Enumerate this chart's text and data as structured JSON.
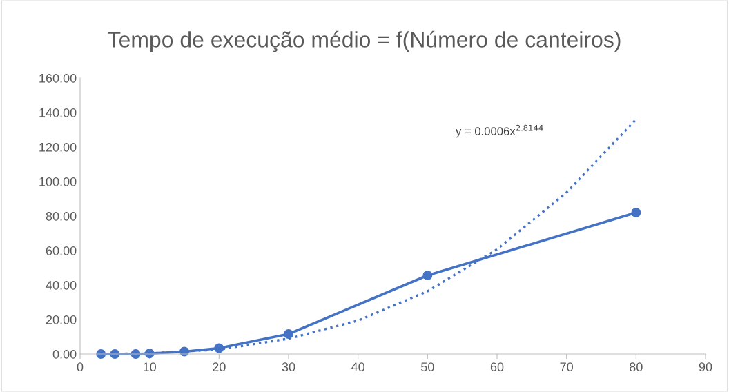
{
  "chart_data": {
    "type": "line",
    "title": "Tempo de execução médio = f(Número de canteiros)",
    "series": [
      {
        "color": "#4472c4",
        "marker": "circle",
        "line_style": "solid",
        "x": [
          3,
          5,
          8,
          10,
          15,
          20,
          30,
          50,
          80
        ],
        "values": [
          0.0,
          0.0,
          0.0,
          0.3,
          1.4,
          3.4,
          11.6,
          45.6,
          82.0
        ]
      },
      {
        "color": "#4472c4",
        "marker": "none",
        "line_style": "dotted",
        "x": [
          3,
          10,
          20,
          30,
          40,
          50,
          60,
          70,
          80
        ],
        "values": [
          0.0,
          0.4,
          2.6,
          8.9,
          19.4,
          36.4,
          60.7,
          93.6,
          136.0
        ]
      }
    ],
    "xlim": [
      0,
      90
    ],
    "xticks": [
      0,
      10,
      20,
      30,
      40,
      50,
      60,
      70,
      80,
      90
    ],
    "ylim": [
      0,
      160
    ],
    "yticks": [
      {
        "value": 0,
        "label": "0.00"
      },
      {
        "value": 20,
        "label": "20.00"
      },
      {
        "value": 40,
        "label": "40.00"
      },
      {
        "value": 60,
        "label": "60.00"
      },
      {
        "value": 80,
        "label": "80.00"
      },
      {
        "value": 100,
        "label": "100.00"
      },
      {
        "value": 120,
        "label": "120.00"
      },
      {
        "value": 140,
        "label": "140.00"
      },
      {
        "value": 160,
        "label": "160.00"
      }
    ],
    "annotations": [
      "y = 0.0006x$^{2.8144}$"
    ],
    "grid": false,
    "legend": false
  }
}
